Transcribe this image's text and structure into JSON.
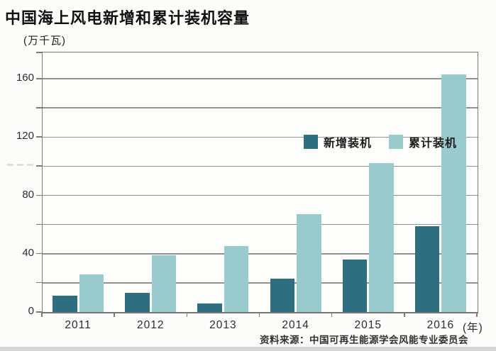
{
  "title": "中国海上风电新增和累计装机容量",
  "unit_label": "(万千瓦)",
  "source": "资料来源：中国可再生能源学会风能专业委员会",
  "colors": {
    "new_installed": "#2F6E80",
    "cumulative_installed": "#99CBCE",
    "gridline": "#919191",
    "frame": "#7B7B7B",
    "bottom_band": "#D4D6D6"
  },
  "chart_data": {
    "type": "bar",
    "title": "中国海上风电新增和累计装机容量",
    "ylabel": "(万千瓦)",
    "xlabel": "(年)",
    "categories": [
      "2011",
      "2012",
      "2013",
      "2014",
      "2015",
      "2016"
    ],
    "series": [
      {
        "name": "新增装机",
        "color": "#2F6E80",
        "values": [
          11,
          13,
          6,
          23,
          36,
          59
        ]
      },
      {
        "name": "累计装机",
        "color": "#99CBCE",
        "values": [
          26,
          39,
          45,
          67,
          102,
          163
        ]
      }
    ],
    "ylim": [
      0,
      178
    ],
    "ytick_step": 20,
    "ytick_labels": [
      0,
      40,
      80,
      120,
      160
    ],
    "grid": true,
    "legend_position": "top-right-inside"
  }
}
